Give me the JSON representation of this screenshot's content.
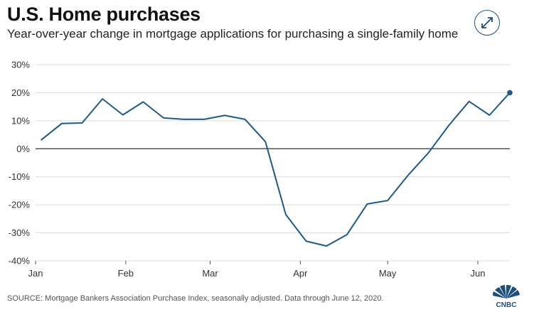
{
  "header": {
    "title": "U.S. Home purchases",
    "subtitle": "Year-over-year change in mortgage applications for purchasing a single-family home"
  },
  "footer": {
    "source": "SOURCE: Mortgage Bankers Association Purchase Index, seasonally adjusted. Data through June 12, 2020.",
    "brand": "CNBC"
  },
  "icons": {
    "expand": "expand-arrows-icon",
    "brand": "cnbc-peacock-icon"
  },
  "colors": {
    "line": "#1d5a8c",
    "grid": "#dcdcdc",
    "zero": "#333333",
    "accent": "#1d4f7c"
  },
  "chart_data": {
    "type": "line",
    "title": "U.S. Home purchases",
    "subtitle": "Year-over-year change in mortgage applications for purchasing a single-family home",
    "xlabel": "",
    "ylabel": "",
    "ylim": [
      -40,
      30
    ],
    "yticks": [
      30,
      20,
      10,
      0,
      -10,
      -20,
      -30,
      -40
    ],
    "ytick_labels": [
      "30%",
      "20%",
      "10%",
      "0%",
      "-10%",
      "-20%",
      "-30%",
      "-40%"
    ],
    "xlim": [
      1,
      164
    ],
    "xticks": [
      1,
      32,
      61,
      92,
      122,
      153
    ],
    "xtick_labels": [
      "Jan",
      "Feb",
      "Mar",
      "Apr",
      "May",
      "Jun"
    ],
    "grid": true,
    "series": [
      {
        "name": "Year-over-year change",
        "x": [
          3,
          10,
          17,
          24,
          31,
          38,
          45,
          52,
          59,
          66,
          73,
          80,
          87,
          94,
          101,
          108,
          115,
          122,
          129,
          136,
          143,
          150,
          157,
          164
        ],
        "values": [
          3.2,
          9.0,
          9.2,
          17.8,
          12.1,
          16.7,
          11.0,
          10.5,
          10.5,
          11.9,
          10.5,
          2.5,
          -23.5,
          -33.0,
          -34.7,
          -30.7,
          -19.7,
          -18.5,
          -9.5,
          -1.5,
          8.3,
          16.9,
          12.0,
          20.0
        ]
      }
    ],
    "end_marker": true
  }
}
